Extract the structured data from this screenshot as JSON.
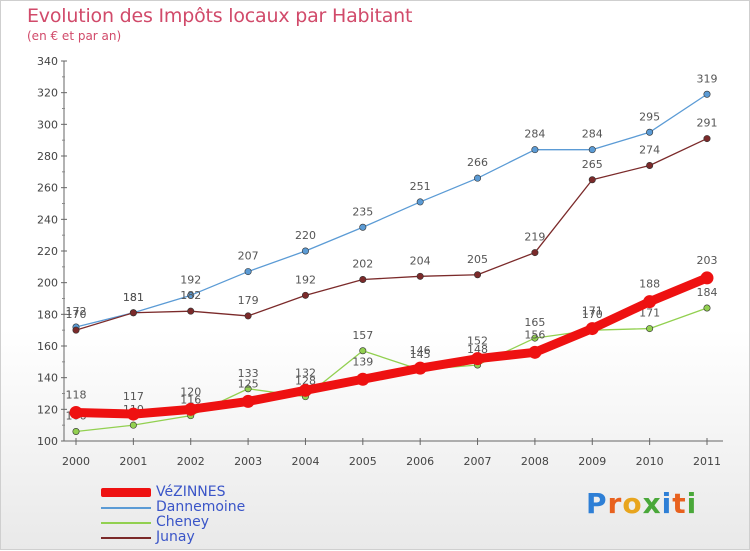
{
  "chart_data": {
    "type": "line",
    "title": "Evolution des Impôts locaux par Habitant",
    "subtitle": "(en € et par an)",
    "x": [
      "2000",
      "2001",
      "2002",
      "2003",
      "2004",
      "2005",
      "2006",
      "2007",
      "2008",
      "2009",
      "2010",
      "2011"
    ],
    "ylim": [
      100,
      340
    ],
    "yticks": [
      100,
      120,
      140,
      160,
      180,
      200,
      220,
      240,
      260,
      280,
      300,
      320,
      340
    ],
    "grid": false,
    "legend_position": "bottom-left",
    "series": [
      {
        "name": "VéZINNES",
        "color": "#ee1111",
        "values": [
          118,
          117,
          120,
          125,
          132,
          139,
          146,
          152,
          156,
          171,
          188,
          203
        ]
      },
      {
        "name": "Dannemoine",
        "color": "#5b9bd5",
        "values": [
          172,
          181,
          192,
          207,
          220,
          235,
          251,
          266,
          284,
          284,
          295,
          319
        ]
      },
      {
        "name": "Cheney",
        "color": "#92d050",
        "values": [
          106,
          110,
          116,
          133,
          128,
          157,
          145,
          148,
          165,
          170,
          171,
          184
        ]
      },
      {
        "name": "Junay",
        "color": "#7b2a2a",
        "values": [
          170,
          181,
          182,
          179,
          192,
          202,
          204,
          205,
          219,
          265,
          274,
          291
        ]
      }
    ]
  },
  "branding": {
    "logo_letters": [
      "P",
      "r",
      "o",
      "x",
      "i",
      "t",
      "i"
    ]
  }
}
